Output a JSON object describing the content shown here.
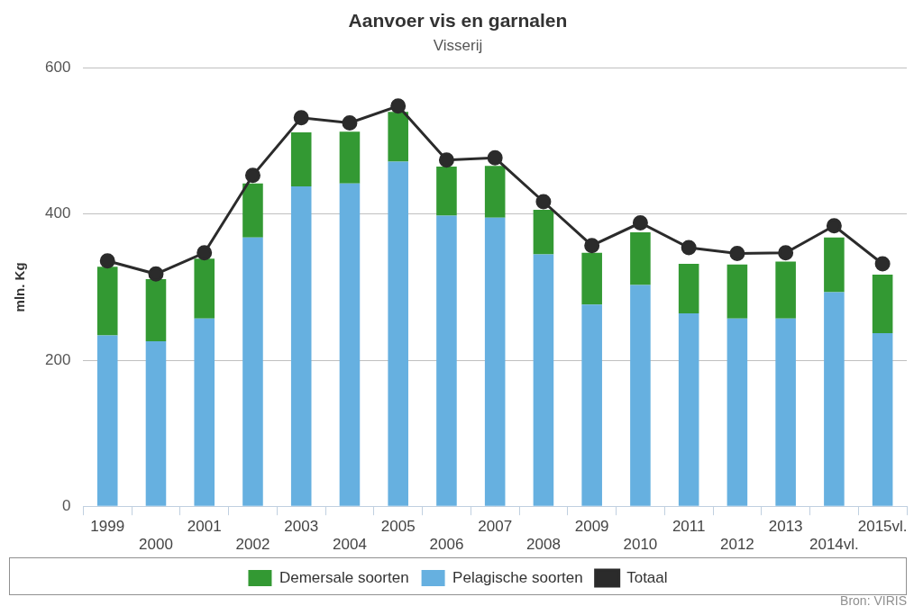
{
  "chart_data": {
    "type": "bar",
    "title": "Aanvoer vis en garnalen",
    "subtitle": "Visserij",
    "y_label": "mln. Kg",
    "source": "Bron: VIRIS",
    "categories": [
      "1999",
      "2000",
      "2001",
      "2002",
      "2003",
      "2004",
      "2005",
      "2006",
      "2007",
      "2008",
      "2009",
      "2010",
      "2011",
      "2012",
      "2013",
      "2014vl.",
      "2015vl."
    ],
    "series": [
      {
        "name": "Demersale soorten",
        "type": "bar",
        "color": "#339933",
        "values": [
          94,
          85,
          82,
          74,
          74,
          71,
          68,
          67,
          71,
          61,
          71,
          72,
          68,
          74,
          78,
          75,
          80
        ]
      },
      {
        "name": "Pelagische soorten",
        "type": "bar",
        "color": "#66b0e0",
        "values": [
          234,
          226,
          257,
          368,
          438,
          442,
          472,
          398,
          395,
          345,
          276,
          303,
          264,
          257,
          257,
          293,
          237
        ]
      },
      {
        "name": "Totaal",
        "type": "line",
        "color": "#2b2b2b",
        "marker": "circle",
        "values": [
          336,
          318,
          347,
          453,
          532,
          525,
          548,
          474,
          477,
          417,
          357,
          388,
          354,
          346,
          347,
          384,
          332
        ]
      }
    ],
    "stacked": true,
    "ylim": [
      0,
      600
    ],
    "yticks": [
      0,
      200,
      400,
      600
    ],
    "grid": true,
    "legend": "bottom"
  }
}
